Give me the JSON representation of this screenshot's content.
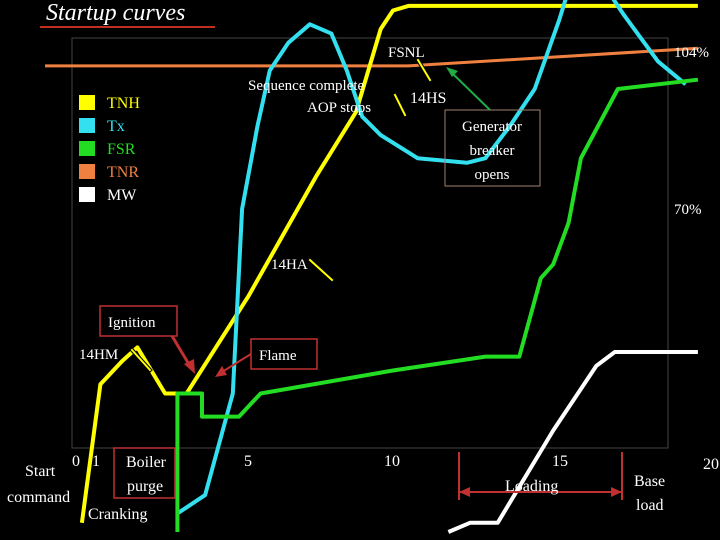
{
  "title": "Startup curves",
  "chart_data": {
    "type": "line",
    "x_ticks": [
      {
        "value": 0,
        "label": "0"
      },
      {
        "value": 1,
        "label": "1"
      },
      {
        "value": 5,
        "label": "5"
      },
      {
        "value": 10,
        "label": "10"
      },
      {
        "value": 15,
        "label": "15"
      },
      {
        "value": 20,
        "label": "20"
      }
    ],
    "right_axis_labels": [
      {
        "value": 104,
        "label": "104%"
      },
      {
        "value": 70,
        "label": "70%"
      }
    ],
    "legend": {
      "placement": "top-left",
      "entries": [
        {
          "name": "TNH",
          "color": "#FFFF00"
        },
        {
          "name": "Tx",
          "color": "#33E0F0"
        },
        {
          "name": "FSR",
          "color": "#22DD22"
        },
        {
          "name": "TNR",
          "color": "#F08040"
        },
        {
          "name": "MW",
          "color": "#FFFFFF"
        }
      ]
    },
    "series": [
      {
        "name": "TNR",
        "color": "#F08040",
        "points": [
          [
            -1.3,
            101
          ],
          [
            10.5,
            101
          ],
          [
            19.9,
            104.8
          ]
        ]
      },
      {
        "name": "TNH",
        "color": "#FFFF00",
        "points": [
          [
            -0.1,
            2
          ],
          [
            0.5,
            32
          ],
          [
            1.2,
            37
          ],
          [
            1.7,
            40
          ],
          [
            2.6,
            30
          ],
          [
            3.3,
            30
          ],
          [
            5.3,
            51
          ],
          [
            7.5,
            77
          ],
          [
            8.8,
            91
          ],
          [
            9.6,
            109
          ],
          [
            10,
            113
          ],
          [
            10.5,
            114
          ],
          [
            19.9,
            114
          ]
        ]
      },
      {
        "name": "Tx",
        "color": "#33E0F0",
        "points": [
          [
            3.0,
            4
          ],
          [
            3.9,
            8
          ],
          [
            4.8,
            30
          ],
          [
            5.1,
            70
          ],
          [
            5.6,
            88
          ],
          [
            6.0,
            100
          ],
          [
            6.6,
            106
          ],
          [
            7.3,
            110
          ],
          [
            8.0,
            108
          ],
          [
            8.5,
            100
          ],
          [
            9.0,
            90
          ],
          [
            9.6,
            86
          ],
          [
            10.8,
            81
          ],
          [
            12.4,
            80
          ],
          [
            13.0,
            81
          ],
          [
            13.8,
            88
          ],
          [
            14.6,
            96
          ],
          [
            15.4,
            111
          ],
          [
            16.0,
            124
          ],
          [
            16.4,
            125
          ],
          [
            16.8,
            119
          ],
          [
            17.5,
            112
          ],
          [
            18.6,
            102
          ],
          [
            19.5,
            97
          ]
        ]
      },
      {
        "name": "FSR",
        "color": "#22DD22",
        "points": [
          [
            3.0,
            0
          ],
          [
            3.0,
            30
          ],
          [
            3.8,
            30
          ],
          [
            3.8,
            25
          ],
          [
            5.0,
            25
          ],
          [
            5.7,
            30
          ],
          [
            10.0,
            35
          ],
          [
            13.0,
            38
          ],
          [
            14.1,
            38
          ],
          [
            14.8,
            55
          ],
          [
            15.2,
            58
          ],
          [
            15.7,
            67
          ],
          [
            16.1,
            81
          ],
          [
            17.3,
            96
          ],
          [
            19.9,
            98
          ]
        ]
      },
      {
        "name": "MW",
        "color": "#FFFFFF",
        "points": [
          [
            11.8,
            0
          ],
          [
            12.5,
            2
          ],
          [
            13.4,
            2
          ],
          [
            15.2,
            22
          ],
          [
            16.6,
            36
          ],
          [
            17.2,
            39
          ],
          [
            19.9,
            39
          ]
        ]
      }
    ],
    "annotations": [
      {
        "name": "FSNL",
        "text": "FSNL"
      },
      {
        "name": "sequence",
        "text": "Sequence complete"
      },
      {
        "name": "aop",
        "text": "AOP stops"
      },
      {
        "name": "14hs",
        "text": "14HS"
      },
      {
        "name": "generator",
        "lines": [
          "Generator",
          "breaker",
          "opens"
        ]
      },
      {
        "name": "14ha",
        "text": "14HA"
      },
      {
        "name": "ignition",
        "text": "Ignition"
      },
      {
        "name": "14hm",
        "text": "14HM"
      },
      {
        "name": "flame",
        "text": "Flame"
      }
    ],
    "bottom_labels": {
      "start": "Start",
      "command": "command",
      "boiler": "Boiler",
      "purge": "purge",
      "cranking": "Cranking",
      "loading": "Loading",
      "base": "Base",
      "load": "load"
    }
  }
}
